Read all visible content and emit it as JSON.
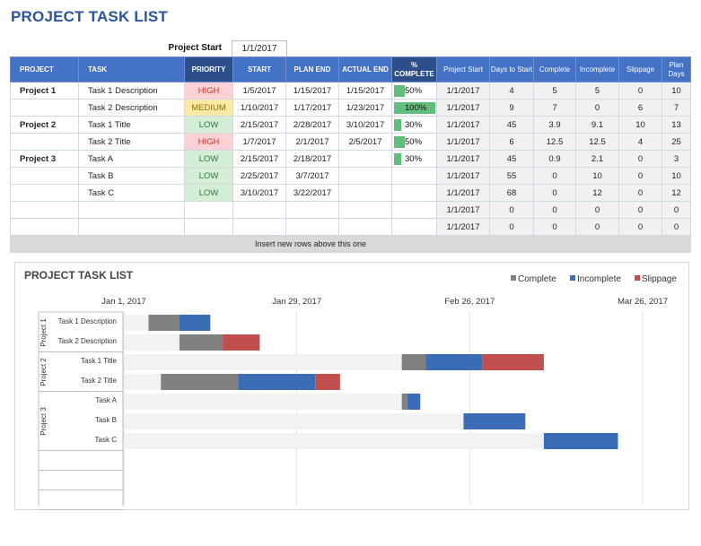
{
  "title": "PROJECT TASK LIST",
  "project_start": {
    "label": "Project Start",
    "value": "1/1/2017"
  },
  "columns": [
    "PROJECT",
    "TASK",
    "PRIORITY",
    "START",
    "PLAN END",
    "ACTUAL END",
    "% COMPLETE",
    "Project Start",
    "Days to Start",
    "Complete",
    "Incomplete",
    "Slippage",
    "Plan Days"
  ],
  "rows": [
    {
      "project": "Project 1",
      "task": "Task 1 Description",
      "priority": "HIGH",
      "level": "high",
      "start": "1/5/2017",
      "plan_end": "1/15/2017",
      "actual_end": "1/15/2017",
      "pct": "50%",
      "pct_value": 0.5,
      "proj_start": "1/1/2017",
      "days_to_start": "4",
      "complete": "5",
      "incomplete": "5",
      "slippage": "0",
      "plan_days": "10"
    },
    {
      "project": "",
      "task": "Task 2 Description",
      "priority": "MEDIUM",
      "level": "medium",
      "start": "1/10/2017",
      "plan_end": "1/17/2017",
      "actual_end": "1/23/2017",
      "pct": "100%",
      "pct_value": 1.0,
      "proj_start": "1/1/2017",
      "days_to_start": "9",
      "complete": "7",
      "incomplete": "0",
      "slippage": "6",
      "plan_days": "7"
    },
    {
      "project": "Project 2",
      "task": "Task 1 Title",
      "priority": "LOW",
      "level": "low",
      "start": "2/15/2017",
      "plan_end": "2/28/2017",
      "actual_end": "3/10/2017",
      "pct": "30%",
      "pct_value": 0.3,
      "proj_start": "1/1/2017",
      "days_to_start": "45",
      "complete": "3.9",
      "incomplete": "9.1",
      "slippage": "10",
      "plan_days": "13"
    },
    {
      "project": "",
      "task": "Task 2 Title",
      "priority": "HIGH",
      "level": "high",
      "start": "1/7/2017",
      "plan_end": "2/1/2017",
      "actual_end": "2/5/2017",
      "pct": "50%",
      "pct_value": 0.5,
      "proj_start": "1/1/2017",
      "days_to_start": "6",
      "complete": "12.5",
      "incomplete": "12.5",
      "slippage": "4",
      "plan_days": "25"
    },
    {
      "project": "Project 3",
      "task": "Task A",
      "priority": "LOW",
      "level": "low",
      "start": "2/15/2017",
      "plan_end": "2/18/2017",
      "actual_end": "",
      "pct": "30%",
      "pct_value": 0.3,
      "proj_start": "1/1/2017",
      "days_to_start": "45",
      "complete": "0.9",
      "incomplete": "2.1",
      "slippage": "0",
      "plan_days": "3"
    },
    {
      "project": "",
      "task": "Task B",
      "priority": "LOW",
      "level": "low",
      "start": "2/25/2017",
      "plan_end": "3/7/2017",
      "actual_end": "",
      "pct": "",
      "pct_value": 0,
      "proj_start": "1/1/2017",
      "days_to_start": "55",
      "complete": "0",
      "incomplete": "10",
      "slippage": "0",
      "plan_days": "10"
    },
    {
      "project": "",
      "task": "Task C",
      "priority": "LOW",
      "level": "low",
      "start": "3/10/2017",
      "plan_end": "3/22/2017",
      "actual_end": "",
      "pct": "",
      "pct_value": 0,
      "proj_start": "1/1/2017",
      "days_to_start": "68",
      "complete": "0",
      "incomplete": "12",
      "slippage": "0",
      "plan_days": "12"
    },
    {
      "project": "",
      "task": "",
      "priority": "",
      "level": "",
      "start": "",
      "plan_end": "",
      "actual_end": "",
      "pct": "",
      "pct_value": 0,
      "proj_start": "1/1/2017",
      "days_to_start": "0",
      "complete": "0",
      "incomplete": "0",
      "slippage": "0",
      "plan_days": "0"
    },
    {
      "project": "",
      "task": "",
      "priority": "",
      "level": "",
      "start": "",
      "plan_end": "",
      "actual_end": "",
      "pct": "",
      "pct_value": 0,
      "proj_start": "1/1/2017",
      "days_to_start": "0",
      "complete": "0",
      "incomplete": "0",
      "slippage": "0",
      "plan_days": "0"
    }
  ],
  "footer_note": "Insert new rows above this one",
  "colors": {
    "header": "#4472c4",
    "complete": "#808080",
    "incomplete": "#3a6db5",
    "slippage": "#c0504d",
    "pct_fill": "#63be7b"
  },
  "chart_data": {
    "type": "bar",
    "orientation": "horizontal",
    "stacked": true,
    "title": "PROJECT TASK LIST",
    "legend": {
      "position": "top-right",
      "entries": [
        "Complete",
        "Incomplete",
        "Slippage"
      ]
    },
    "x_axis": {
      "type": "date",
      "ticks": [
        "Jan 1, 2017",
        "Jan 29, 2017",
        "Feb 26, 2017",
        "Mar 26, 2017"
      ],
      "tick_days": [
        0,
        28,
        56,
        84
      ],
      "max_days": 84
    },
    "groups": [
      {
        "name": "Project 1",
        "tasks": [
          "Task 1 Description",
          "Task 2 Description"
        ]
      },
      {
        "name": "Project 2",
        "tasks": [
          "Task 1 Title",
          "Task 2 Title"
        ]
      },
      {
        "name": "Project 3",
        "tasks": [
          "Task A",
          "Task B",
          "Task C"
        ]
      }
    ],
    "categories": [
      "Task 1 Description",
      "Task 2 Description",
      "Task 1 Title",
      "Task 2 Title",
      "Task A",
      "Task B",
      "Task C"
    ],
    "series": [
      {
        "name": "Complete",
        "values": [
          5,
          7,
          3.9,
          12.5,
          0.9,
          0,
          0
        ]
      },
      {
        "name": "Incomplete",
        "values": [
          5,
          0,
          9.1,
          12.5,
          2.1,
          10,
          12
        ]
      },
      {
        "name": "Slippage",
        "values": [
          0,
          6,
          10,
          4,
          0,
          0,
          0
        ]
      }
    ],
    "offsets": [
      4,
      9,
      45,
      6,
      45,
      55,
      68
    ],
    "grid": true
  }
}
